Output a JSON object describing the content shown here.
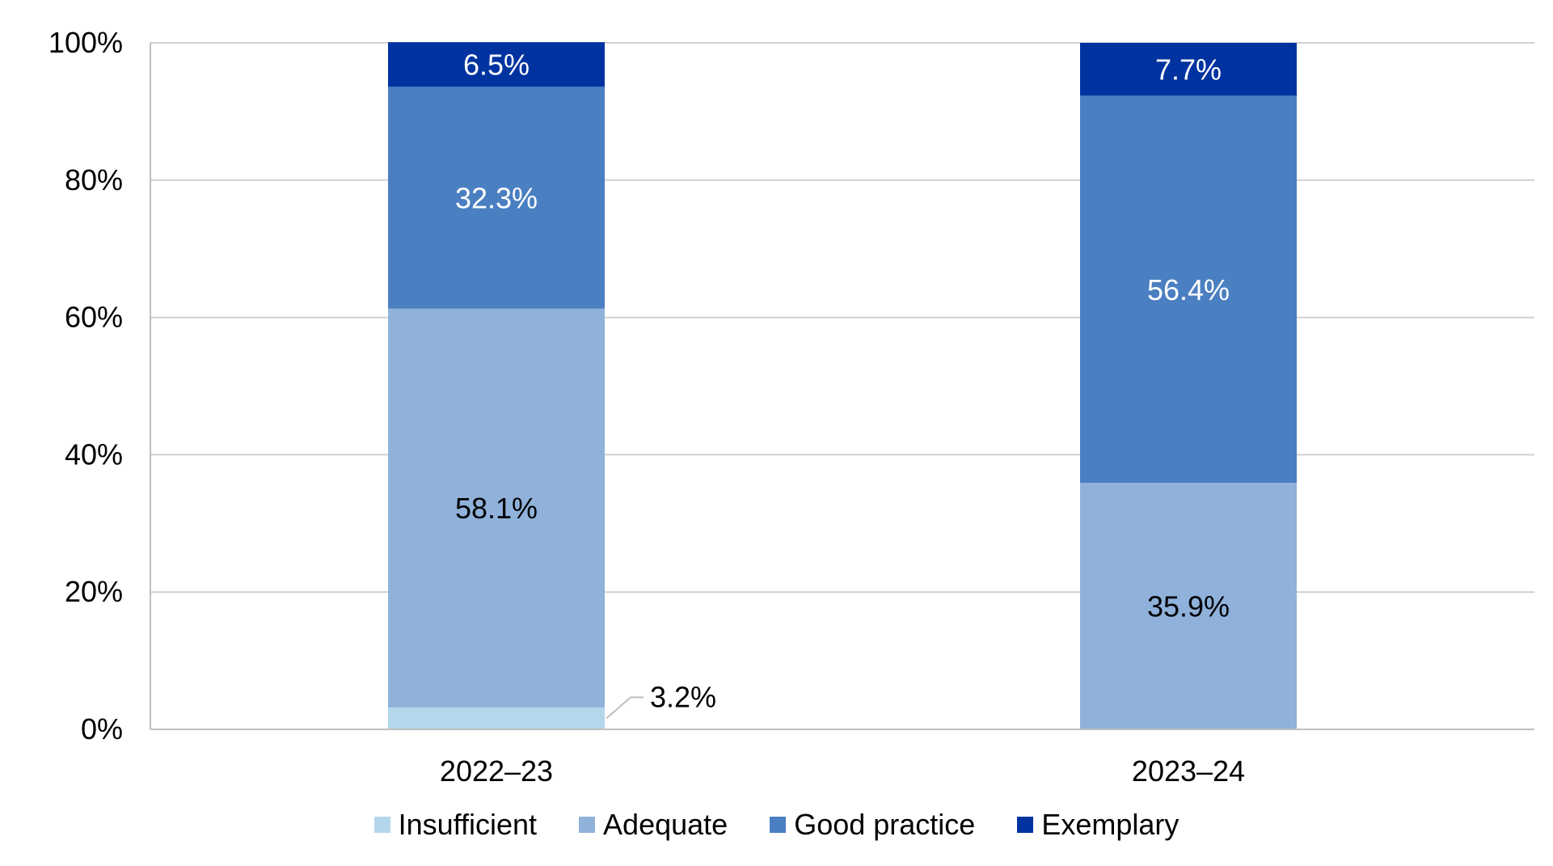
{
  "chart_data": {
    "type": "bar",
    "stacked": true,
    "categories": [
      "2022–23",
      "2023–24"
    ],
    "series": [
      {
        "name": "Insufficient",
        "color": "#B4D7EB",
        "values": [
          3.2,
          0
        ],
        "labels": [
          "3.2%",
          ""
        ]
      },
      {
        "name": "Adequate",
        "color": "#8FB1DA",
        "values": [
          58.1,
          35.9
        ],
        "labels": [
          "58.1%",
          "35.9%"
        ]
      },
      {
        "name": "Good practice",
        "color": "#4A7FC1",
        "values": [
          32.3,
          56.4
        ],
        "labels": [
          "32.3%",
          "56.4%"
        ]
      },
      {
        "name": "Exemplary",
        "color": "#0033A0",
        "values": [
          6.5,
          7.7
        ],
        "labels": [
          "6.5%",
          "7.7%"
        ]
      }
    ],
    "ylim": [
      0,
      100
    ],
    "yticks": [
      "0%",
      "20%",
      "40%",
      "60%",
      "80%",
      "100%"
    ],
    "grid": true,
    "legend_position": "bottom"
  }
}
